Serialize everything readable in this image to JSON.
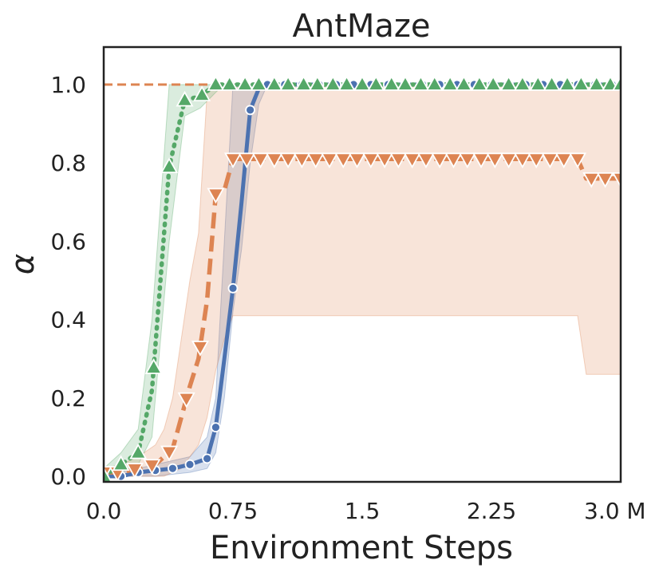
{
  "chart_data": {
    "type": "line",
    "title": "AntMaze",
    "xlabel": "Environment Steps",
    "ylabel": "α",
    "xlim": [
      0,
      3.0
    ],
    "ylim": [
      0,
      1.1
    ],
    "x_ticks": [
      0,
      0.75,
      1.5,
      2.25,
      3.0
    ],
    "x_tick_labels": [
      "0.0",
      "0.75",
      "1.5",
      "2.25",
      "3.0 M"
    ],
    "y_ticks": [
      0,
      0.2,
      0.4,
      0.6,
      0.8,
      1.0
    ],
    "y_tick_labels": [
      "0.0",
      "0.2",
      "0.4",
      "0.6",
      "0.8",
      "1.0"
    ],
    "grid": false,
    "reference_line": {
      "y": 1.0,
      "style": "dashed",
      "color": "#dd8452"
    },
    "series": [
      {
        "color": "#4c72b0",
        "marker": "circle",
        "linestyle": "solid",
        "x": [
          0.0,
          0.1,
          0.2,
          0.3,
          0.4,
          0.5,
          0.6,
          0.65,
          0.7,
          0.75,
          0.8,
          0.85,
          0.9,
          0.95,
          1.0,
          1.1,
          1.2,
          1.3,
          1.4,
          1.5,
          1.6,
          1.7,
          1.8,
          1.9,
          2.0,
          2.1,
          2.2,
          2.3,
          2.4,
          2.5,
          2.6,
          2.7,
          2.8,
          2.9,
          3.0
        ],
        "y": [
          0.0,
          0.0,
          0.01,
          0.015,
          0.02,
          0.03,
          0.045,
          0.125,
          0.3,
          0.48,
          0.7,
          0.935,
          0.99,
          1.0,
          1.0,
          1.0,
          1.0,
          1.0,
          1.0,
          1.0,
          1.0,
          1.0,
          1.0,
          1.0,
          1.0,
          1.0,
          1.0,
          1.0,
          1.0,
          1.0,
          1.0,
          1.0,
          1.0,
          1.0,
          1.0
        ],
        "lower": [
          0.0,
          0.0,
          0.0,
          0.0,
          0.005,
          0.01,
          0.02,
          0.06,
          0.2,
          0.42,
          0.58,
          0.8,
          0.95,
          1.0,
          1.0,
          1.0,
          1.0,
          1.0,
          1.0,
          1.0,
          1.0,
          1.0,
          1.0,
          1.0,
          1.0,
          1.0,
          1.0,
          1.0,
          1.0,
          1.0,
          1.0,
          1.0,
          1.0,
          1.0,
          1.0
        ],
        "upper": [
          0.01,
          0.01,
          0.02,
          0.03,
          0.04,
          0.05,
          0.1,
          0.2,
          0.6,
          1.0,
          1.0,
          1.0,
          1.0,
          1.0,
          1.0,
          1.0,
          1.0,
          1.0,
          1.0,
          1.0,
          1.0,
          1.0,
          1.0,
          1.0,
          1.0,
          1.0,
          1.0,
          1.0,
          1.0,
          1.0,
          1.0,
          1.0,
          1.0,
          1.0,
          1.0
        ],
        "marker_x": [
          0.0,
          0.1,
          0.2,
          0.3,
          0.4,
          0.5,
          0.6,
          0.65,
          0.75,
          0.85,
          0.95,
          1.05,
          1.15,
          1.25,
          1.35,
          1.45,
          1.55,
          1.65,
          1.75,
          1.85,
          1.95,
          2.05,
          2.15,
          2.25,
          2.35,
          2.45,
          2.55,
          2.65,
          2.75,
          2.85,
          2.95,
          3.0
        ]
      },
      {
        "color": "#dd8452",
        "marker": "triangle-down",
        "linestyle": "dashed",
        "x": [
          0.0,
          0.1,
          0.2,
          0.3,
          0.35,
          0.4,
          0.45,
          0.5,
          0.55,
          0.6,
          0.65,
          0.7,
          0.75,
          0.8,
          0.85,
          0.9,
          0.95,
          1.0,
          1.1,
          1.2,
          1.3,
          1.4,
          1.5,
          1.6,
          1.7,
          1.8,
          1.9,
          2.0,
          2.1,
          2.2,
          2.3,
          2.4,
          2.5,
          2.6,
          2.7,
          2.75,
          2.8,
          2.9,
          3.0
        ],
        "y": [
          0.01,
          0.01,
          0.02,
          0.03,
          0.05,
          0.07,
          0.15,
          0.23,
          0.3,
          0.45,
          0.72,
          0.73,
          0.81,
          0.81,
          0.81,
          0.81,
          0.81,
          0.81,
          0.81,
          0.81,
          0.81,
          0.81,
          0.81,
          0.81,
          0.81,
          0.81,
          0.81,
          0.81,
          0.81,
          0.81,
          0.81,
          0.81,
          0.81,
          0.81,
          0.81,
          0.81,
          0.76,
          0.76,
          0.76
        ],
        "lower": [
          0.0,
          0.0,
          0.0,
          0.0,
          0.0,
          0.01,
          0.02,
          0.05,
          0.08,
          0.15,
          0.27,
          0.35,
          0.41,
          0.41,
          0.41,
          0.41,
          0.41,
          0.41,
          0.41,
          0.41,
          0.41,
          0.41,
          0.41,
          0.41,
          0.41,
          0.41,
          0.41,
          0.41,
          0.41,
          0.41,
          0.41,
          0.41,
          0.41,
          0.41,
          0.41,
          0.41,
          0.26,
          0.26,
          0.26
        ],
        "upper": [
          0.02,
          0.03,
          0.05,
          0.08,
          0.12,
          0.2,
          0.35,
          0.5,
          0.62,
          0.98,
          1.0,
          1.0,
          1.0,
          1.0,
          1.0,
          1.0,
          1.0,
          1.0,
          1.0,
          1.0,
          1.0,
          1.0,
          1.0,
          1.0,
          1.0,
          1.0,
          1.0,
          1.0,
          1.0,
          1.0,
          1.0,
          1.0,
          1.0,
          1.0,
          1.0,
          1.0,
          1.0,
          1.0,
          1.0
        ],
        "marker_x": [
          0.0,
          0.08,
          0.18,
          0.28,
          0.38,
          0.48,
          0.56,
          0.65,
          0.75,
          0.83,
          0.91,
          0.99,
          1.07,
          1.15,
          1.23,
          1.31,
          1.39,
          1.47,
          1.55,
          1.63,
          1.71,
          1.79,
          1.87,
          1.95,
          2.03,
          2.11,
          2.19,
          2.27,
          2.35,
          2.43,
          2.51,
          2.59,
          2.67,
          2.75,
          2.83,
          2.91,
          3.0
        ]
      },
      {
        "color": "#55a868",
        "marker": "triangle-up",
        "linestyle": "dotted",
        "x": [
          0.0,
          0.1,
          0.2,
          0.28,
          0.38,
          0.47,
          0.56,
          0.65,
          0.7,
          0.75,
          0.8,
          0.85,
          0.9,
          1.0,
          1.1,
          1.2,
          1.3,
          1.4,
          1.5,
          1.6,
          1.7,
          1.8,
          1.9,
          2.0,
          2.1,
          2.2,
          2.3,
          2.4,
          2.5,
          2.6,
          2.7,
          2.8,
          2.9,
          3.0
        ],
        "y": [
          0.0,
          0.03,
          0.06,
          0.22,
          0.79,
          0.96,
          0.97,
          1.0,
          1.0,
          1.0,
          1.0,
          1.0,
          1.0,
          1.0,
          1.0,
          1.0,
          1.0,
          1.0,
          1.0,
          1.0,
          1.0,
          1.0,
          1.0,
          1.0,
          1.0,
          1.0,
          1.0,
          1.0,
          1.0,
          1.0,
          1.0,
          1.0,
          1.0,
          1.0
        ],
        "lower": [
          0.0,
          0.01,
          0.03,
          0.1,
          0.6,
          0.92,
          0.94,
          0.98,
          1.0,
          1.0,
          1.0,
          1.0,
          1.0,
          1.0,
          1.0,
          1.0,
          1.0,
          1.0,
          1.0,
          1.0,
          1.0,
          1.0,
          1.0,
          1.0,
          1.0,
          1.0,
          1.0,
          1.0,
          1.0,
          1.0,
          1.0,
          1.0,
          1.0,
          1.0
        ],
        "upper": [
          0.02,
          0.06,
          0.12,
          0.4,
          1.0,
          1.0,
          1.0,
          1.0,
          1.0,
          1.0,
          1.0,
          1.0,
          1.0,
          1.0,
          1.0,
          1.0,
          1.0,
          1.0,
          1.0,
          1.0,
          1.0,
          1.0,
          1.0,
          1.0,
          1.0,
          1.0,
          1.0,
          1.0,
          1.0,
          1.0,
          1.0,
          1.0,
          1.0,
          1.0
        ],
        "marker_x": [
          0.0,
          0.1,
          0.2,
          0.29,
          0.38,
          0.47,
          0.57,
          0.65,
          0.73,
          0.82,
          0.9,
          0.99,
          1.07,
          1.16,
          1.24,
          1.33,
          1.41,
          1.5,
          1.58,
          1.67,
          1.75,
          1.84,
          1.92,
          2.01,
          2.09,
          2.18,
          2.26,
          2.35,
          2.43,
          2.52,
          2.6,
          2.69,
          2.77,
          2.86,
          2.94,
          3.0
        ]
      }
    ]
  }
}
